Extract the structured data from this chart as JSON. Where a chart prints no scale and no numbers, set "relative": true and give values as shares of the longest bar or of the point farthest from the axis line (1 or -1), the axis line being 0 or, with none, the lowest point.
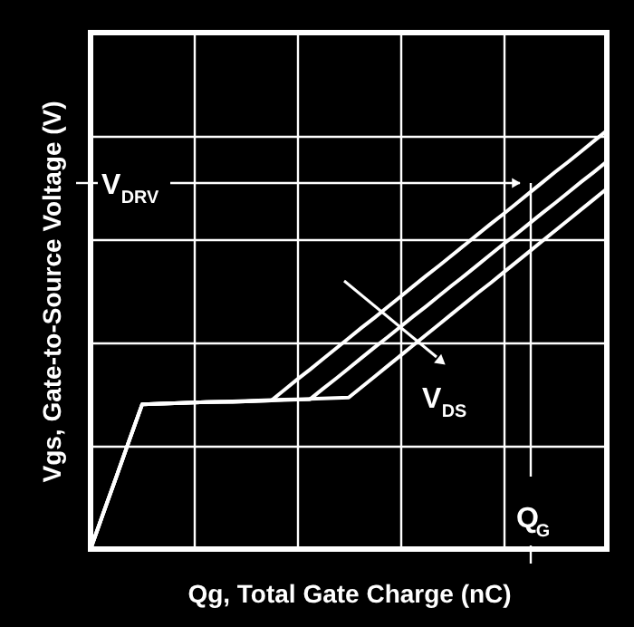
{
  "chart_data": {
    "type": "line",
    "relative": true,
    "xlabel": "Qg, Total Gate Charge (nC)",
    "ylabel": "Vgs, Gate-to-Source Voltage (V)",
    "categories": [
      null,
      null,
      null,
      null,
      null,
      null,
      null,
      null,
      null,
      null,
      null,
      null,
      null,
      null,
      null,
      null,
      null,
      null,
      null,
      null,
      null,
      null,
      null,
      null,
      null,
      null,
      null,
      null,
      null,
      null,
      null,
      null,
      null,
      null,
      null,
      null,
      null,
      null,
      null,
      null,
      null
    ],
    "tick_labels": false,
    "grid": true,
    "legend": false,
    "marker": "none",
    "line_style": "solid",
    "series": [
      {
        "color": "#ffffff",
        "values": [
          0,
          0.087,
          0.173,
          0.26,
          0.346,
          0.347,
          0.348,
          0.349,
          0.35,
          0.351,
          0.352,
          0.352,
          0.353,
          0.354,
          0.355,
          0.38,
          0.405,
          0.429,
          0.454,
          0.479,
          0.504,
          0.529,
          0.553,
          0.578,
          0.603,
          0.628,
          0.653,
          0.677,
          0.702,
          0.727,
          0.752,
          0.777,
          0.801,
          0.826,
          0.851,
          0.876,
          0.901,
          0.925,
          0.95,
          0.975,
          1.0
        ]
      },
      {
        "color": "#ffffff",
        "values": [
          0,
          0.087,
          0.173,
          0.26,
          0.346,
          0.347,
          0.348,
          0.349,
          0.35,
          0.351,
          0.352,
          0.352,
          0.353,
          0.354,
          0.355,
          0.356,
          0.357,
          0.358,
          0.383,
          0.407,
          0.432,
          0.457,
          0.482,
          0.506,
          0.531,
          0.556,
          0.58,
          0.605,
          0.63,
          0.654,
          0.679,
          0.704,
          0.729,
          0.753,
          0.778,
          0.803,
          0.827,
          0.852,
          0.877,
          0.901,
          0.926
        ]
      },
      {
        "color": "#ffffff",
        "values": [
          0,
          0.087,
          0.173,
          0.26,
          0.346,
          0.347,
          0.348,
          0.349,
          0.35,
          0.351,
          0.352,
          0.353,
          0.354,
          0.355,
          0.356,
          0.357,
          0.358,
          0.359,
          0.36,
          0.361,
          0.362,
          0.387,
          0.412,
          0.437,
          0.462,
          0.487,
          0.512,
          0.537,
          0.562,
          0.587,
          0.612,
          0.636,
          0.661,
          0.686,
          0.711,
          0.736,
          0.761,
          0.786,
          0.811,
          0.836,
          0.861
        ]
      }
    ],
    "annotations": [
      "V$_{DRV}$",
      "Q$_{G}$",
      "V$_{DS}$"
    ]
  }
}
